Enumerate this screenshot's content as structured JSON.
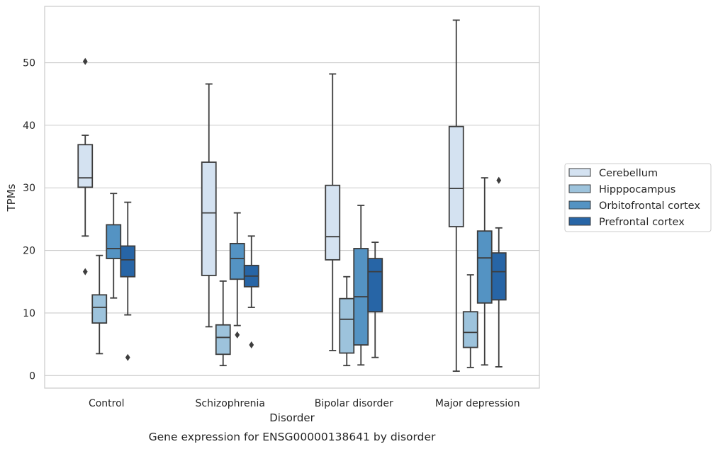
{
  "chart_data": {
    "type": "box",
    "caption": "Gene expression for ENSG00000138641 by disorder",
    "xlabel": "Disorder",
    "ylabel": "TPMs",
    "ylim": [
      -2,
      59
    ],
    "yticks": [
      0,
      10,
      20,
      30,
      40,
      50
    ],
    "grid": "horizontal",
    "legend_position": "right",
    "categories": [
      "Control",
      "Schizophrenia",
      "Bipolar disorder",
      "Major depression"
    ],
    "series": [
      {
        "name": "Cerebellum",
        "color": "#d4e2f1",
        "boxes": [
          {
            "whislo": 22.3,
            "q1": 30.1,
            "med": 31.6,
            "q3": 36.9,
            "whishi": 38.4,
            "fliers": [
              50.2,
              16.6
            ]
          },
          {
            "whislo": 7.8,
            "q1": 16.0,
            "med": 26.0,
            "q3": 34.1,
            "whishi": 46.6,
            "fliers": []
          },
          {
            "whislo": 4.0,
            "q1": 18.5,
            "med": 22.2,
            "q3": 30.4,
            "whishi": 48.2,
            "fliers": []
          },
          {
            "whislo": 0.7,
            "q1": 23.8,
            "med": 29.9,
            "q3": 39.8,
            "whishi": 56.8,
            "fliers": []
          }
        ]
      },
      {
        "name": "Hipppocampus",
        "color": "#9dc3dc",
        "boxes": [
          {
            "whislo": 3.5,
            "q1": 8.4,
            "med": 10.9,
            "q3": 12.9,
            "whishi": 19.2,
            "fliers": []
          },
          {
            "whislo": 1.6,
            "q1": 3.4,
            "med": 6.1,
            "q3": 8.1,
            "whishi": 15.1,
            "fliers": []
          },
          {
            "whislo": 1.6,
            "q1": 3.6,
            "med": 9.0,
            "q3": 12.3,
            "whishi": 15.8,
            "fliers": []
          },
          {
            "whislo": 1.3,
            "q1": 4.5,
            "med": 6.9,
            "q3": 10.2,
            "whishi": 16.1,
            "fliers": []
          }
        ]
      },
      {
        "name": "Orbitofrontal cortex",
        "color": "#5493c3",
        "boxes": [
          {
            "whislo": 12.4,
            "q1": 18.7,
            "med": 20.3,
            "q3": 24.1,
            "whishi": 29.1,
            "fliers": []
          },
          {
            "whislo": 8.0,
            "q1": 15.4,
            "med": 18.7,
            "q3": 21.1,
            "whishi": 26.0,
            "fliers": [
              6.5
            ]
          },
          {
            "whislo": 1.7,
            "q1": 4.9,
            "med": 12.6,
            "q3": 20.3,
            "whishi": 27.2,
            "fliers": []
          },
          {
            "whislo": 1.7,
            "q1": 11.6,
            "med": 18.8,
            "q3": 23.1,
            "whishi": 31.6,
            "fliers": []
          }
        ]
      },
      {
        "name": "Prefrontal cortex",
        "color": "#2765a6",
        "boxes": [
          {
            "whislo": 9.7,
            "q1": 15.8,
            "med": 18.5,
            "q3": 20.7,
            "whishi": 27.7,
            "fliers": [
              2.9
            ]
          },
          {
            "whislo": 10.9,
            "q1": 14.2,
            "med": 15.9,
            "q3": 17.6,
            "whishi": 22.3,
            "fliers": [
              4.9
            ]
          },
          {
            "whislo": 2.9,
            "q1": 10.2,
            "med": 16.6,
            "q3": 18.7,
            "whishi": 21.3,
            "fliers": []
          },
          {
            "whislo": 1.4,
            "q1": 12.1,
            "med": 16.6,
            "q3": 19.6,
            "whishi": 23.6,
            "fliers": [
              31.2
            ]
          }
        ]
      }
    ]
  }
}
